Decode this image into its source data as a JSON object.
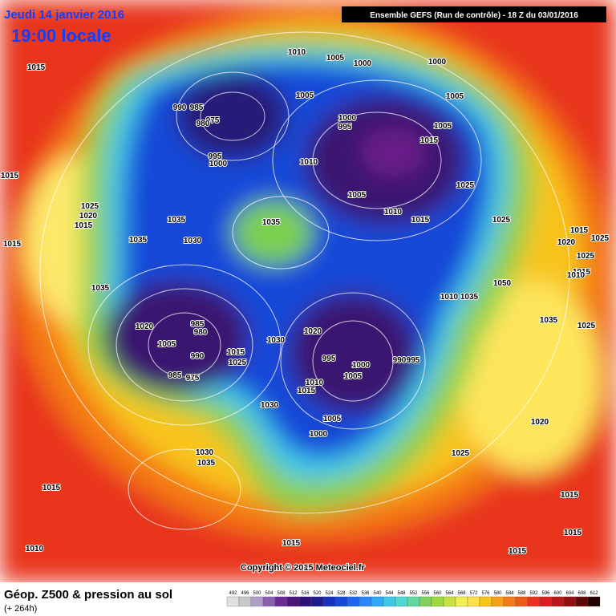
{
  "header": {
    "date": "Jeudi 14 janvier 2016",
    "time": "19:00 locale",
    "run": "Ensemble GEFS  (Run de contrôle)  -  18 Z du 03/01/2016"
  },
  "copyright": "Copyright © 2015 Meteociel.fr",
  "footer": {
    "title": "Géop. Z500 & pression au sol",
    "subtitle": "(+ 264h)"
  },
  "isobar_labels": [
    1010,
    1005,
    1000,
    1000,
    1015,
    1005,
    1005,
    990,
    985,
    975,
    980,
    1000,
    995,
    1005,
    1015,
    995,
    1000,
    1010,
    1015,
    1025,
    1005,
    1025,
    1010,
    1020,
    1035,
    1035,
    1015,
    1015,
    1025,
    1015,
    1015,
    1035,
    1030,
    1020,
    1025,
    1025,
    1015,
    1010,
    1050,
    1035,
    1035,
    1010,
    985,
    980,
    1035,
    1025,
    1020,
    1020,
    1005,
    1030,
    1015,
    990,
    995,
    990,
    995,
    1000,
    1025,
    1005,
    985,
    975,
    1010,
    1015,
    1030,
    1005,
    1020,
    1000,
    1025,
    1030,
    1035,
    1015,
    1015,
    1010,
    1015,
    1015,
    1015
  ],
  "scale_labels": [
    492,
    496,
    500,
    504,
    508,
    512,
    516,
    520,
    524,
    528,
    532,
    536,
    540,
    544,
    548,
    552,
    556,
    560,
    564,
    568,
    572,
    576,
    580,
    584,
    588,
    592,
    596,
    600,
    604,
    608,
    612
  ]
}
